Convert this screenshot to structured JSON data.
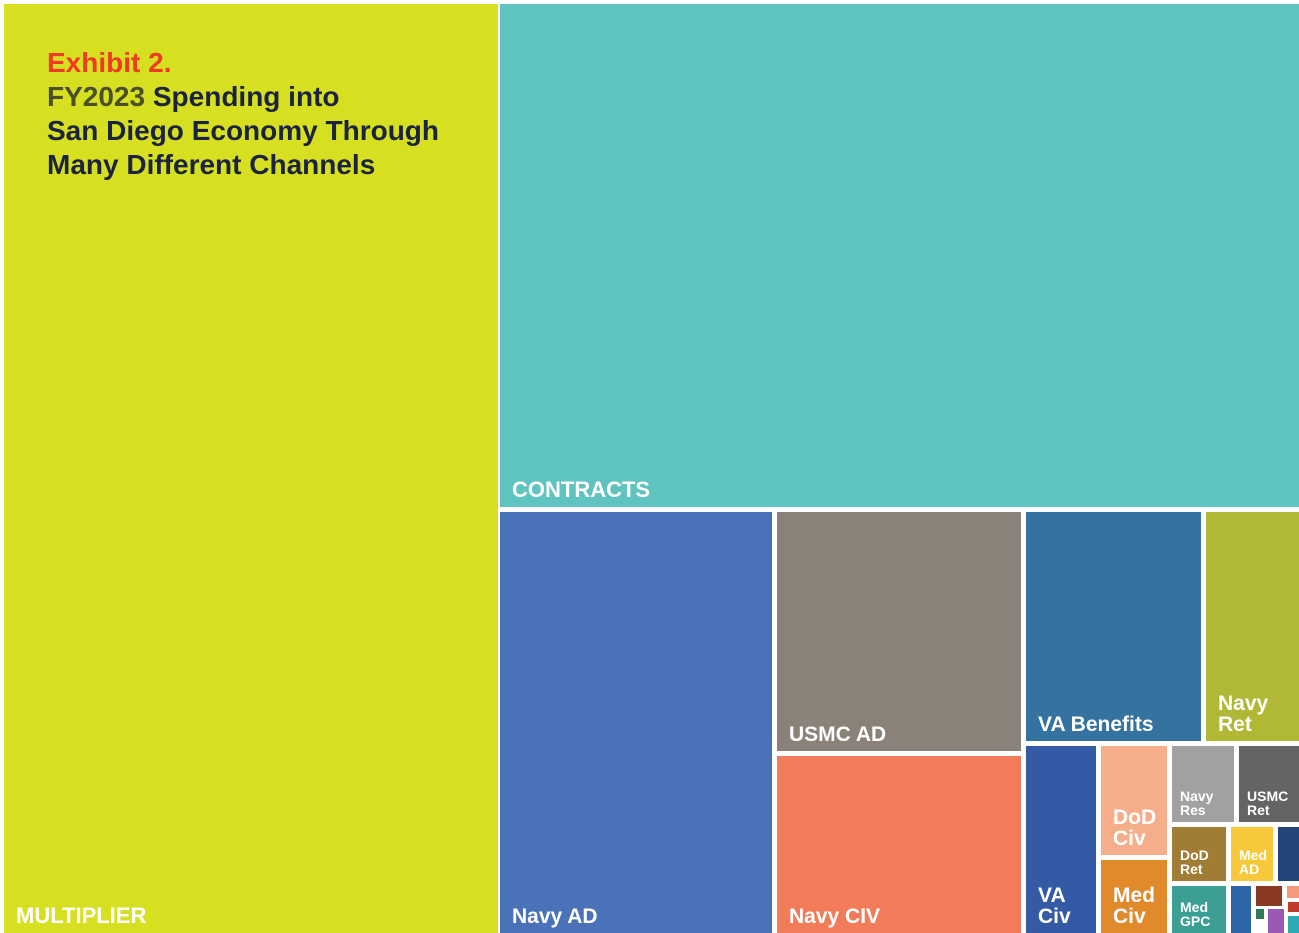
{
  "title": {
    "exhibit": "Exhibit 2.",
    "year": "FY2023",
    "line1_rest": "Spending into",
    "line2": "San Diego Economy Through",
    "line3": "Many Different Channels"
  },
  "chart_data": {
    "type": "treemap",
    "tiles": [
      {
        "key": "multiplier",
        "label": "MULTIPLIER",
        "color": "#d6e021"
      },
      {
        "key": "contracts",
        "label": "CONTRACTS",
        "color": "#5fc4bf"
      },
      {
        "key": "navy_ad",
        "label": "Navy AD",
        "color": "#4a72b8"
      },
      {
        "key": "usmc_ad",
        "label": "USMC AD",
        "color": "#8a8279"
      },
      {
        "key": "navy_civ",
        "label": "Navy CIV",
        "color": "#f27c5a"
      },
      {
        "key": "va_benefits",
        "label": "VA Benefits",
        "color": "#34729f"
      },
      {
        "key": "navy_ret",
        "label": "Navy\nRet",
        "color": "#b0b836"
      },
      {
        "key": "va_civ",
        "label": "VA\nCiv",
        "color": "#355aa5"
      },
      {
        "key": "dod_civ",
        "label": "DoD\nCiv",
        "color": "#f6ad89"
      },
      {
        "key": "med_civ",
        "label": "Med\nCiv",
        "color": "#e08a2c"
      },
      {
        "key": "navy_res",
        "label": "Navy\nRes",
        "color": "#a1a1a1"
      },
      {
        "key": "usmc_ret",
        "label": "USMC\nRet",
        "color": "#646464"
      },
      {
        "key": "dod_ret",
        "label": "DoD\nRet",
        "color": "#a07c34"
      },
      {
        "key": "med_ad",
        "label": "Med\nAD",
        "color": "#f7c93a"
      },
      {
        "key": "med_gpc",
        "label": "Med\nGPC",
        "color": "#3c9f94"
      },
      {
        "key": "small_1",
        "label": "",
        "color": "#23457a"
      },
      {
        "key": "small_2",
        "label": "",
        "color": "#2e64a8"
      },
      {
        "key": "small_3",
        "label": "",
        "color": "#8b3a22"
      },
      {
        "key": "small_4",
        "label": "",
        "color": "#f29a7a"
      },
      {
        "key": "small_5",
        "label": "",
        "color": "#9b58b5"
      },
      {
        "key": "small_6",
        "label": "",
        "color": "#2fa9b5"
      },
      {
        "key": "small_7",
        "label": "",
        "color": "#2f7a5a"
      },
      {
        "key": "small_8",
        "label": "",
        "color": "#c0392b"
      }
    ]
  }
}
